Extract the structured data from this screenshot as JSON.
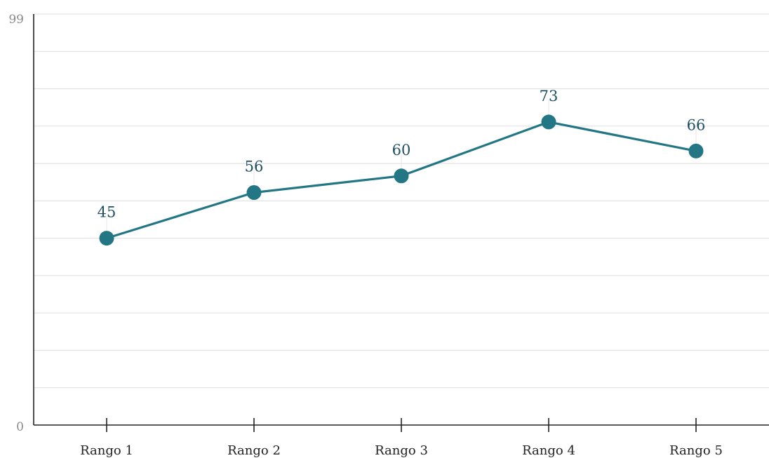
{
  "chart_data": {
    "type": "line",
    "categories": [
      "Rango 1",
      "Rango 2",
      "Rango 3",
      "Rango 4",
      "Rango 5"
    ],
    "series": [
      {
        "values": [
          45,
          56,
          60,
          73,
          66
        ]
      }
    ],
    "ylim": [
      0,
      99
    ],
    "y_tick_labels": [
      "0",
      "99"
    ],
    "grid": true,
    "gridline_count": 11,
    "data_labels": true,
    "colors": {
      "series": "#237785",
      "data_label": "#1f4f63",
      "axis": "#222222",
      "grid": "#e3e3e3",
      "y_tick_text": "#8a8a8a"
    }
  }
}
